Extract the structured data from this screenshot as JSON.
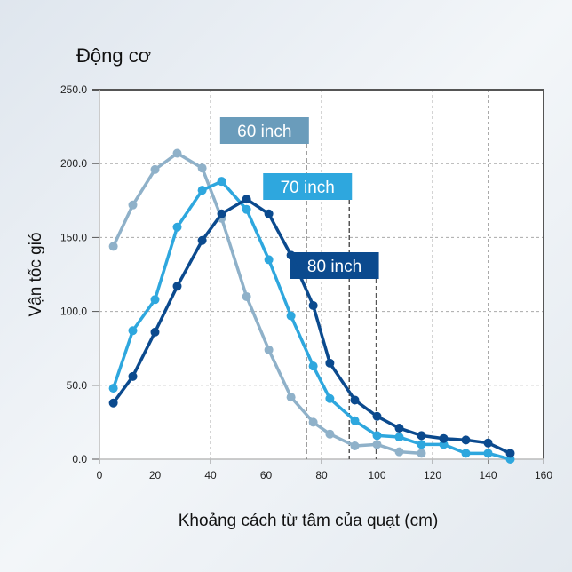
{
  "chart_data": {
    "type": "line",
    "title": "Động cơ",
    "xlabel": "Khoảng cách từ tâm của quạt (cm)",
    "ylabel": "Vận tốc gió",
    "xlim": [
      0,
      160
    ],
    "ylim": [
      0,
      250
    ],
    "xticks": [
      "0",
      "20",
      "40",
      "60",
      "80",
      "100",
      "120",
      "140",
      "160"
    ],
    "yticks": [
      "0.0",
      "50.0",
      "100.0",
      "150.0",
      "200.0",
      "250.0"
    ],
    "grid": true,
    "series": [
      {
        "name": "60 inch",
        "color": "#8fb1c9",
        "x": [
          5,
          12,
          20,
          28,
          37,
          44,
          53,
          61,
          69,
          77,
          83,
          92,
          100,
          108,
          116
        ],
        "y": [
          144,
          172,
          196,
          207,
          197,
          163,
          110,
          74,
          42,
          25,
          17,
          9,
          10,
          5,
          4
        ]
      },
      {
        "name": "70 inch",
        "color": "#2ea7de",
        "x": [
          5,
          12,
          20,
          28,
          37,
          44,
          53,
          61,
          69,
          77,
          83,
          92,
          100,
          108,
          116,
          124,
          132,
          140,
          148
        ],
        "y": [
          48,
          87,
          108,
          157,
          182,
          188,
          169,
          135,
          97,
          63,
          41,
          26,
          16,
          15,
          10,
          10,
          4,
          4,
          0
        ]
      },
      {
        "name": "80 inch",
        "color": "#0b4a8e",
        "x": [
          5,
          12,
          20,
          28,
          37,
          44,
          53,
          61,
          69,
          77,
          83,
          92,
          100,
          108,
          116,
          124,
          132,
          140,
          148
        ],
        "y": [
          38,
          56,
          86,
          117,
          148,
          166,
          176,
          166,
          138,
          104,
          65,
          40,
          29,
          21,
          16,
          14,
          13,
          11,
          4
        ]
      }
    ],
    "annotations": [
      {
        "label": "60 inch",
        "x": 74.5,
        "color": "#6a9cbb"
      },
      {
        "label": "70 inch",
        "x": 90,
        "color": "#2ea7de"
      },
      {
        "label": "80 inch",
        "x": 99.7,
        "color": "#0b4a8e"
      }
    ]
  }
}
